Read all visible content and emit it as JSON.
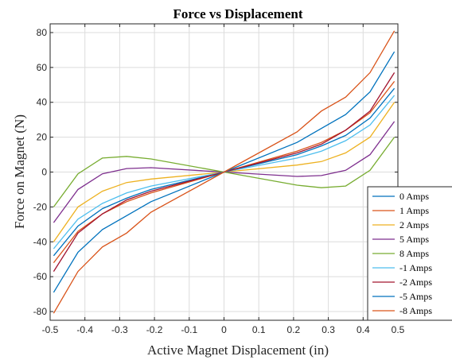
{
  "chart_data": {
    "type": "line",
    "title": "Force vs Displacement",
    "xlabel": "Active Magnet Displacement (in)",
    "ylabel": "Force on Magnet (N)",
    "xlim": [
      -0.5,
      0.5
    ],
    "ylim": [
      -85,
      85
    ],
    "xticks": [
      -0.5,
      -0.4,
      -0.3,
      -0.2,
      -0.1,
      0,
      0.1,
      0.2,
      0.3,
      0.4,
      0.5
    ],
    "xtick_labels": [
      "-0.5",
      "-0.4",
      "-0.3",
      "-0.2",
      "-0.1",
      "0",
      "0.1",
      "0.2",
      "0.3",
      "0.4",
      "0.5"
    ],
    "yticks": [
      -80,
      -60,
      -40,
      -20,
      0,
      20,
      40,
      60,
      80
    ],
    "ytick_labels": [
      "-80",
      "-60",
      "-40",
      "-20",
      "0",
      "20",
      "40",
      "60",
      "80"
    ],
    "grid": true,
    "legend_position": "bottom-right",
    "x": [
      -0.49,
      -0.42,
      -0.35,
      -0.28,
      -0.21,
      0,
      0.21,
      0.28,
      0.35,
      0.42,
      0.49
    ],
    "series": [
      {
        "name": "0 Amps",
        "color": "#0072BD",
        "values": [
          -48,
          -31,
          -21,
          -15,
          -10,
          0,
          10,
          15,
          21,
          31,
          48
        ]
      },
      {
        "name": "1 Amps",
        "color": "#D95319",
        "values": [
          -52,
          -34,
          -24,
          -17,
          -12,
          0,
          12,
          17,
          24,
          34,
          52
        ]
      },
      {
        "name": "2 Amps",
        "color": "#EDB120",
        "values": [
          -40,
          -20,
          -11,
          -6,
          -4,
          0,
          4,
          6,
          11,
          20,
          40
        ]
      },
      {
        "name": "5 Amps",
        "color": "#7E2F8E",
        "values": [
          -29,
          -10,
          -1,
          2,
          2.5,
          0,
          -2.5,
          -2,
          1,
          10,
          29
        ]
      },
      {
        "name": "8 Amps",
        "color": "#77AC30",
        "values": [
          -20,
          -1,
          8,
          9,
          7.5,
          0,
          -7.5,
          -9,
          -8,
          1,
          20
        ]
      },
      {
        "name": "-1 Amps",
        "color": "#4DBEEE",
        "values": [
          -44,
          -27,
          -18,
          -12,
          -8,
          0,
          8,
          12,
          18,
          27,
          44
        ]
      },
      {
        "name": "-2 Amps",
        "color": "#A2142F",
        "values": [
          -57,
          -35,
          -24,
          -16,
          -11,
          0,
          11,
          16,
          24,
          35,
          57
        ]
      },
      {
        "name": "-5 Amps",
        "color": "#0072BD",
        "values": [
          -69,
          -46,
          -33,
          -25,
          -17,
          0,
          17,
          25,
          33,
          46,
          69
        ]
      },
      {
        "name": "-8 Amps",
        "color": "#D95319",
        "values": [
          -81,
          -57,
          -43,
          -35,
          -23,
          0,
          23,
          35,
          43,
          57,
          81
        ]
      }
    ]
  }
}
